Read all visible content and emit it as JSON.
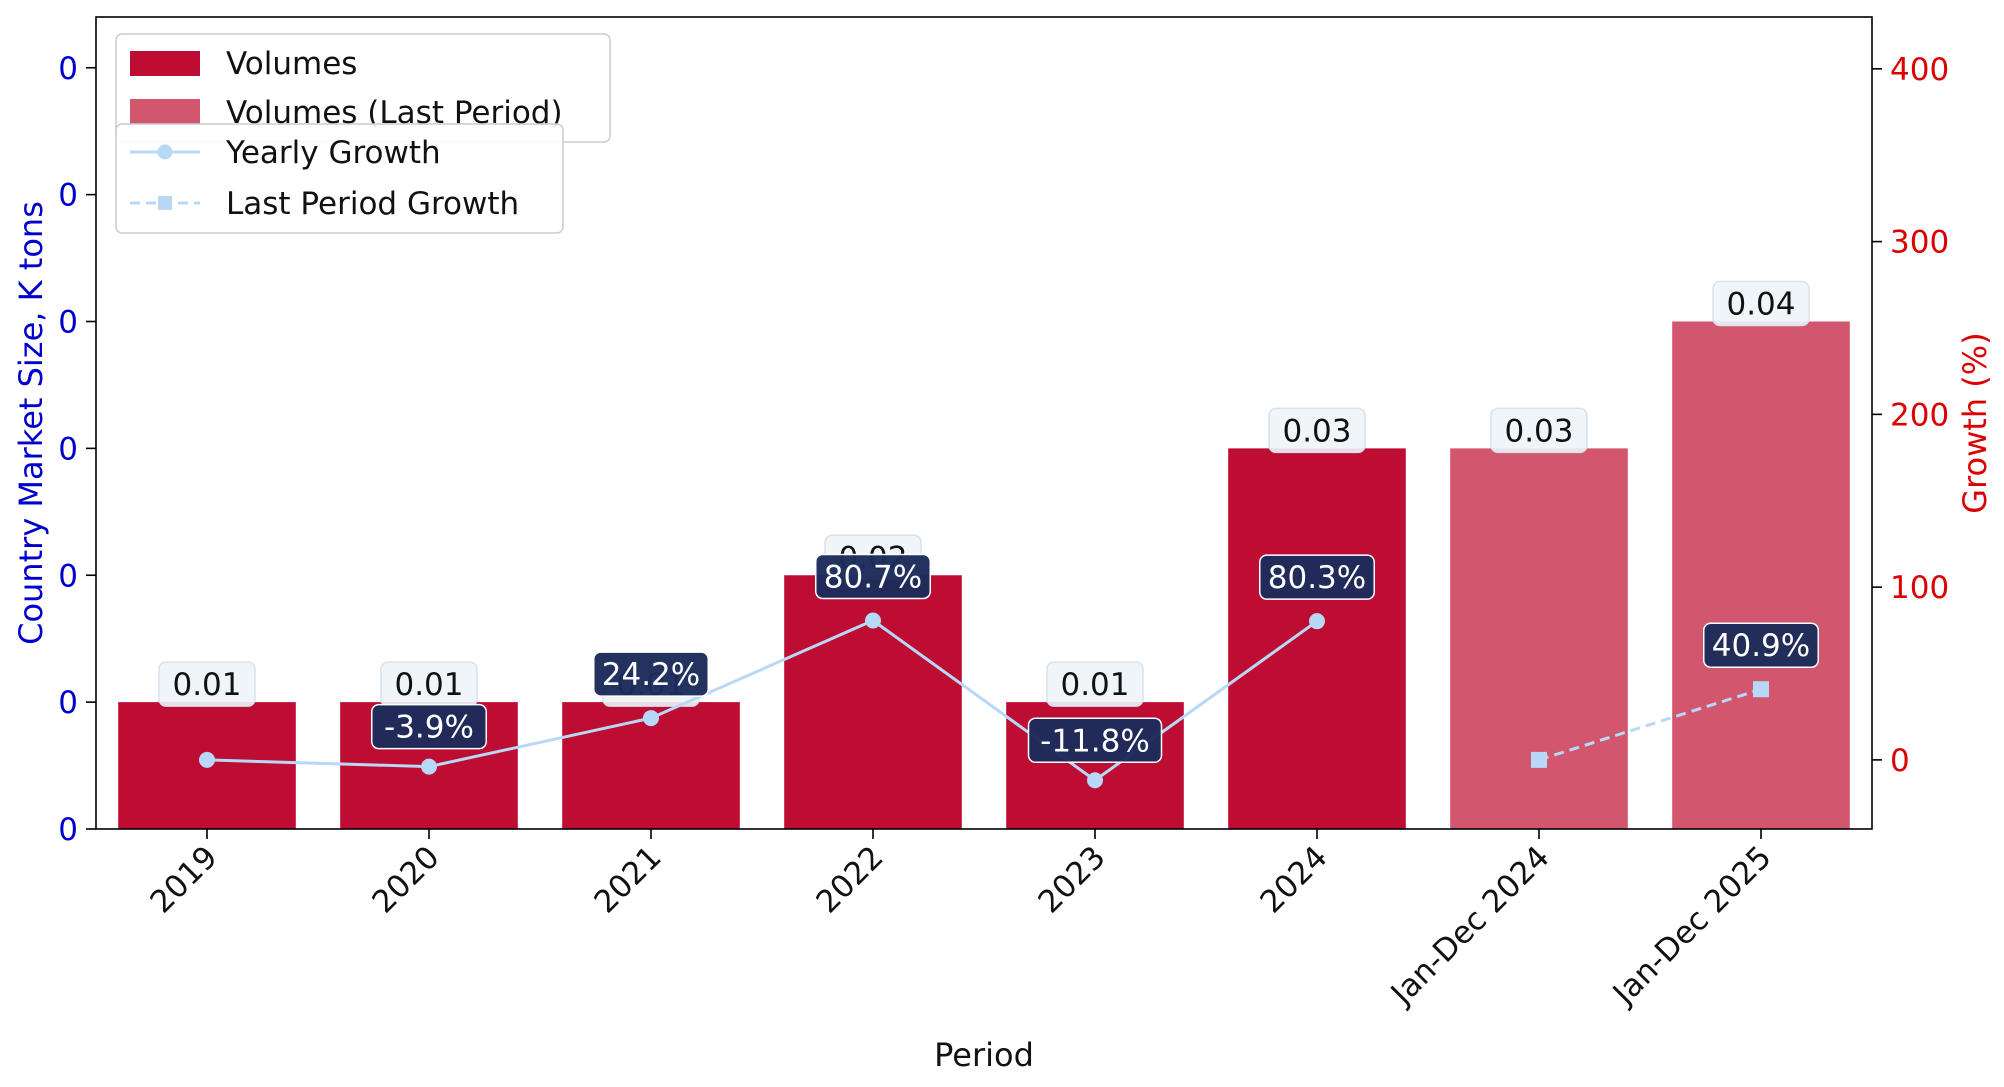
{
  "chart_data": {
    "type": "bar",
    "title": "",
    "xlabel": "Period",
    "ylabel_left": "Country Market Size, K tons",
    "ylabel_right": "Growth (%)",
    "categories": [
      "2019",
      "2020",
      "2021",
      "2022",
      "2023",
      "2024",
      "Jan-Dec 2024",
      "Jan-Dec 2025"
    ],
    "left_axis": {
      "ylim": [
        0,
        0.064
      ],
      "ticks": [
        0,
        0.01,
        0.02,
        0.03,
        0.04,
        0.05,
        0.06
      ],
      "tick_labels": [
        "0",
        "0",
        "0",
        "0",
        "0",
        "0",
        "0"
      ],
      "color": "#0000cc"
    },
    "right_axis": {
      "ylim": [
        -40,
        430
      ],
      "ticks": [
        0,
        100,
        200,
        300,
        400
      ],
      "tick_labels": [
        "0",
        "100",
        "200",
        "300",
        "400"
      ],
      "color": "#dd0000"
    },
    "series": [
      {
        "name": "Volumes",
        "kind": "bar",
        "color": "#bd0d33",
        "values": [
          0.01,
          0.01,
          0.01,
          0.02,
          0.01,
          0.03,
          null,
          null
        ],
        "labels": [
          "0.01",
          "0.01",
          "0.01",
          "0.02",
          "0.01",
          "0.03",
          "",
          ""
        ]
      },
      {
        "name": "Volumes (Last Period)",
        "kind": "bar",
        "color": "#d1566e",
        "values": [
          null,
          null,
          null,
          null,
          null,
          null,
          0.03,
          0.04
        ],
        "labels": [
          "",
          "",
          "",
          "",
          "",
          "",
          "0.03",
          "0.04"
        ]
      },
      {
        "name": "Yearly Growth",
        "kind": "line",
        "axis": "right",
        "color": "#b8d8f8",
        "values": [
          0,
          -3.9,
          24.2,
          80.7,
          -11.8,
          80.3,
          null,
          null
        ],
        "labels": [
          "",
          "-3.9%",
          "24.2%",
          "80.7%",
          "-11.8%",
          "80.3%",
          "",
          ""
        ]
      },
      {
        "name": "Last Period Growth",
        "kind": "line",
        "axis": "right",
        "color": "#b8d8f8",
        "dashed": true,
        "values": [
          null,
          null,
          null,
          null,
          null,
          null,
          0,
          40.9
        ],
        "labels": [
          "",
          "",
          "",
          "",
          "",
          "",
          "",
          "40.9%"
        ]
      }
    ],
    "legend": [
      {
        "position": "top-left",
        "entries": [
          "Volumes",
          "Volumes (Last Period)"
        ]
      },
      {
        "position": "top-left",
        "entries": [
          "Yearly Growth",
          "Last Period Growth"
        ]
      }
    ],
    "grid": false
  }
}
